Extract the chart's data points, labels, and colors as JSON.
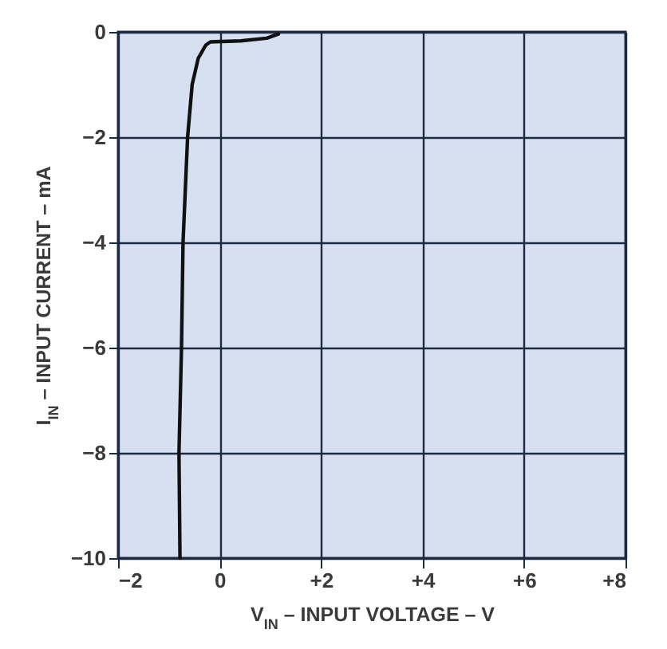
{
  "chart_data": {
    "type": "line",
    "xlabel": "V$_{IN}$ – INPUT VOLTAGE – V",
    "ylabel": "I$_{IN}$ – INPUT CURRENT – mA",
    "x": [
      -0.78,
      -0.8,
      -0.75,
      -0.72,
      -0.63,
      -0.54,
      -0.42,
      -0.27,
      -0.18,
      0.42,
      0.93,
      1.16
    ],
    "series": [
      {
        "color": "#111111",
        "values": [
          -10,
          -8,
          -6,
          -4,
          -2,
          -1,
          -0.5,
          -0.25,
          -0.19,
          -0.17,
          -0.12,
          -0.04
        ]
      }
    ],
    "xlim": [
      -2,
      8
    ],
    "ylim": [
      -10,
      0
    ],
    "xticks": [
      -2,
      0,
      {
        "value": 2,
        "label": "+2"
      },
      {
        "value": 4,
        "label": "+4"
      },
      {
        "value": 6,
        "label": "+6"
      },
      {
        "value": 8,
        "label": "+8"
      }
    ],
    "yticks": [
      -10,
      -8,
      -6,
      -4,
      -2,
      0
    ],
    "grid": true,
    "marker": "none",
    "line_style": "solid"
  }
}
